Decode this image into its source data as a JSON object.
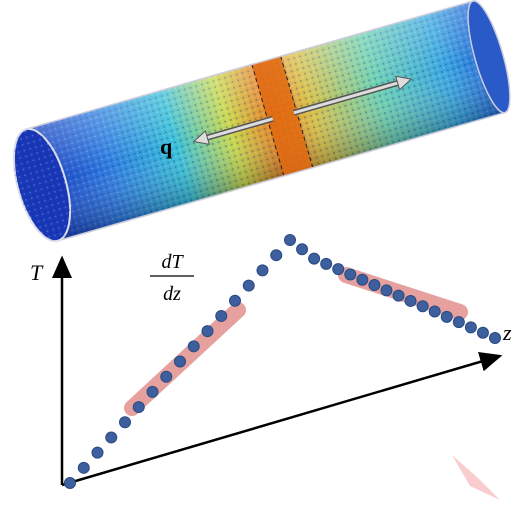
{
  "cylinder": {
    "flux_label": "q"
  },
  "plot": {
    "y_axis_label": "T",
    "x_axis_label": "z",
    "gradient": {
      "numerator": "dT",
      "denominator": "dz"
    }
  }
}
